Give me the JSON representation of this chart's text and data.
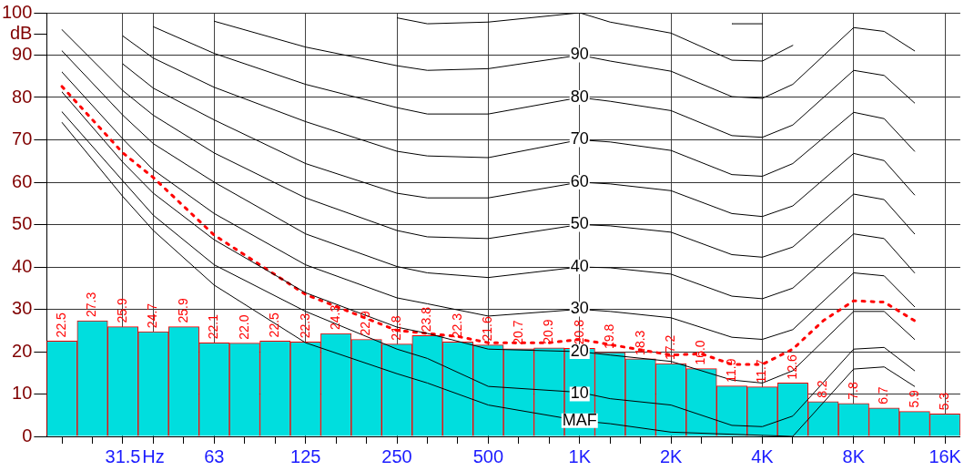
{
  "chart_data": {
    "type": "bar",
    "categories": [
      null,
      null,
      "31.5",
      "Hz",
      null,
      "63",
      null,
      null,
      "125",
      null,
      null,
      "250",
      null,
      null,
      "500",
      null,
      null,
      "1K",
      null,
      null,
      "2K",
      null,
      null,
      "4K",
      null,
      null,
      "8K",
      null,
      null,
      "16K"
    ],
    "series": [
      {
        "color": "#00dede",
        "values": [
          22.5,
          27.3,
          25.9,
          24.7,
          25.9,
          22.1,
          22.0,
          22.5,
          22.3,
          24.3,
          22.9,
          21.8,
          23.8,
          22.3,
          21.6,
          20.7,
          20.9,
          20.8,
          19.8,
          18.3,
          17.2,
          16.0,
          11.9,
          11.7,
          12.6,
          8.2,
          7.8,
          6.7,
          5.9,
          5.3
        ],
        "value_labels": [
          "22.5",
          "27.3",
          "25.9",
          "24.7",
          "25.9",
          "22.1",
          "22.0",
          "22.5",
          "22.3",
          "24.3",
          "22.9",
          "21.8",
          "23.8",
          "22.3",
          "21.6",
          "20.7",
          "20.9",
          "20.8",
          "19.8",
          "18.3",
          "17.2",
          "16.0",
          "11.9",
          "11.7",
          "12.6",
          "8.2",
          "7.8",
          "6.7",
          "5.9",
          "5.3"
        ]
      },
      {
        "type": "line",
        "color": "#000000",
        "values": [
          74.1,
          null,
          56.6,
          48.6,
          null,
          35.7,
          null,
          null,
          22.1,
          null,
          null,
          14.8,
          12.6,
          null,
          7.4,
          null,
          null,
          3.7,
          3.0,
          null,
          1.0,
          null,
          null,
          null,
          0,
          null,
          15.9,
          16.4,
          11.8,
          null
        ]
      },
      {
        "type": "line",
        "color": "#000000",
        "values": [
          76.6,
          null,
          60.3,
          52.2,
          null,
          40.5,
          null,
          null,
          29.5,
          null,
          null,
          20.6,
          18.4,
          null,
          11.8,
          null,
          null,
          10.4,
          8.9,
          null,
          7.4,
          null,
          2.6,
          2.3,
          4.8,
          null,
          20.6,
          21.0,
          15.5,
          null
        ]
      },
      {
        "type": "line",
        "color": "#000000",
        "values": [
          81.3,
          null,
          64.7,
          57.4,
          null,
          46.4,
          null,
          null,
          33.9,
          null,
          null,
          25.8,
          24.3,
          null,
          20.6,
          null,
          null,
          20,
          19.2,
          null,
          17.7,
          null,
          13.3,
          12.6,
          15.5,
          null,
          29.5,
          29.5,
          22.9,
          null
        ]
      },
      {
        "type": "line",
        "color": "#000000",
        "values": [
          86,
          null,
          70.2,
          62.9,
          null,
          52.6,
          null,
          null,
          40.5,
          null,
          null,
          32.7,
          31.3,
          null,
          28.4,
          null,
          null,
          30,
          29.5,
          null,
          28,
          null,
          23.4,
          22.9,
          25.2,
          null,
          38.6,
          37.9,
          30.6,
          null
        ]
      },
      {
        "type": "line",
        "color": "#000000",
        "values": [
          91,
          null,
          75.8,
          69.1,
          null,
          60,
          null,
          null,
          47.8,
          null,
          null,
          40.1,
          38.6,
          null,
          37.5,
          null,
          null,
          40,
          39.8,
          null,
          38.3,
          null,
          33.1,
          32.5,
          35,
          null,
          47.8,
          46.7,
          38.6,
          null
        ]
      },
      {
        "type": "line",
        "color": "#000000",
        "values": [
          96,
          null,
          81.6,
          75.8,
          null,
          66.9,
          null,
          null,
          56.3,
          null,
          null,
          48.6,
          47.1,
          null,
          46.7,
          null,
          null,
          50,
          49.7,
          null,
          48.2,
          null,
          42.9,
          42.3,
          44.7,
          null,
          57.2,
          55.9,
          47.8,
          null
        ]
      },
      {
        "type": "line",
        "color": "#000000",
        "values": [
          null,
          null,
          87.9,
          82.2,
          null,
          74.7,
          null,
          null,
          64.4,
          null,
          null,
          57.4,
          56.3,
          null,
          56.3,
          null,
          null,
          60,
          59.6,
          null,
          58,
          null,
          52.6,
          51.9,
          54.4,
          null,
          66.8,
          65.1,
          57,
          null
        ]
      },
      {
        "type": "line",
        "color": "#000000",
        "values": [
          null,
          null,
          94.5,
          89.3,
          null,
          82.4,
          null,
          null,
          74.3,
          null,
          null,
          67.3,
          66.2,
          null,
          65.8,
          null,
          null,
          70,
          69.5,
          null,
          67.5,
          null,
          61.8,
          61.4,
          64.4,
          null,
          76.5,
          75,
          67.3,
          null
        ]
      },
      {
        "type": "line",
        "color": "#000000",
        "values": [
          null,
          null,
          null,
          96.7,
          null,
          90.4,
          null,
          null,
          83.1,
          null,
          null,
          77.6,
          76.1,
          null,
          76.1,
          null,
          null,
          80,
          79.1,
          null,
          76.9,
          null,
          71,
          70.6,
          73.5,
          null,
          86.4,
          85.2,
          78.7,
          null
        ]
      },
      {
        "type": "line",
        "color": "#000000",
        "values": [
          null,
          null,
          null,
          null,
          null,
          98,
          null,
          null,
          91.9,
          null,
          null,
          87.5,
          86.4,
          null,
          86.8,
          null,
          null,
          90,
          88.6,
          null,
          86.2,
          null,
          80.2,
          79.8,
          83.1,
          null,
          96.5,
          95.6,
          91,
          null
        ]
      },
      {
        "type": "line",
        "color": "#000000",
        "values": [
          null,
          null,
          null,
          null,
          null,
          null,
          null,
          null,
          null,
          null,
          null,
          98.8,
          97.4,
          null,
          97.8,
          null,
          null,
          100,
          97.8,
          null,
          95.2,
          null,
          88.8,
          88.6,
          92.3,
          null,
          null,
          null,
          null,
          null
        ]
      },
      {
        "type": "line",
        "color": "#000000",
        "values": [
          null,
          null,
          null,
          null,
          null,
          null,
          null,
          null,
          null,
          null,
          null,
          null,
          null,
          null,
          null,
          null,
          null,
          null,
          null,
          null,
          null,
          null,
          97.4,
          97.4,
          null,
          null,
          null,
          null,
          null,
          null
        ]
      },
      {
        "type": "line",
        "color": "#ff0000",
        "line_style": "dotted",
        "values": [
          82.6,
          null,
          66.9,
          61.1,
          null,
          47.5,
          null,
          null,
          33.5,
          null,
          null,
          25,
          null,
          23.6,
          22.1,
          null,
          22.1,
          22.9,
          null,
          null,
          19.2,
          19.5,
          17,
          17,
          20.6,
          27.3,
          32,
          31.7,
          27.3,
          null
        ]
      }
    ],
    "ylim": [
      0,
      100
    ],
    "yticks": [
      0,
      10,
      20,
      30,
      40,
      50,
      60,
      70,
      80,
      90,
      {
        "value": 95,
        "label": "dB"
      },
      100
    ],
    "grid": true,
    "legend": false,
    "marker": "none",
    "annotations": [
      {
        "text": "90",
        "x": "1K",
        "y": 90
      },
      {
        "text": "80",
        "x": "1K",
        "y": 80
      },
      {
        "text": "70",
        "x": "1K",
        "y": 70
      },
      {
        "text": "60",
        "x": "1K",
        "y": 60
      },
      {
        "text": "50",
        "x": "1K",
        "y": 50
      },
      {
        "text": "40",
        "x": "1K",
        "y": 40
      },
      {
        "text": "30",
        "x": "1K",
        "y": 30
      },
      {
        "text": "20",
        "x": "1K",
        "y": 20
      },
      {
        "text": "10",
        "x": "1K",
        "y": 10
      },
      {
        "text": "MAF",
        "x": "1K",
        "y": 3.7
      }
    ]
  }
}
